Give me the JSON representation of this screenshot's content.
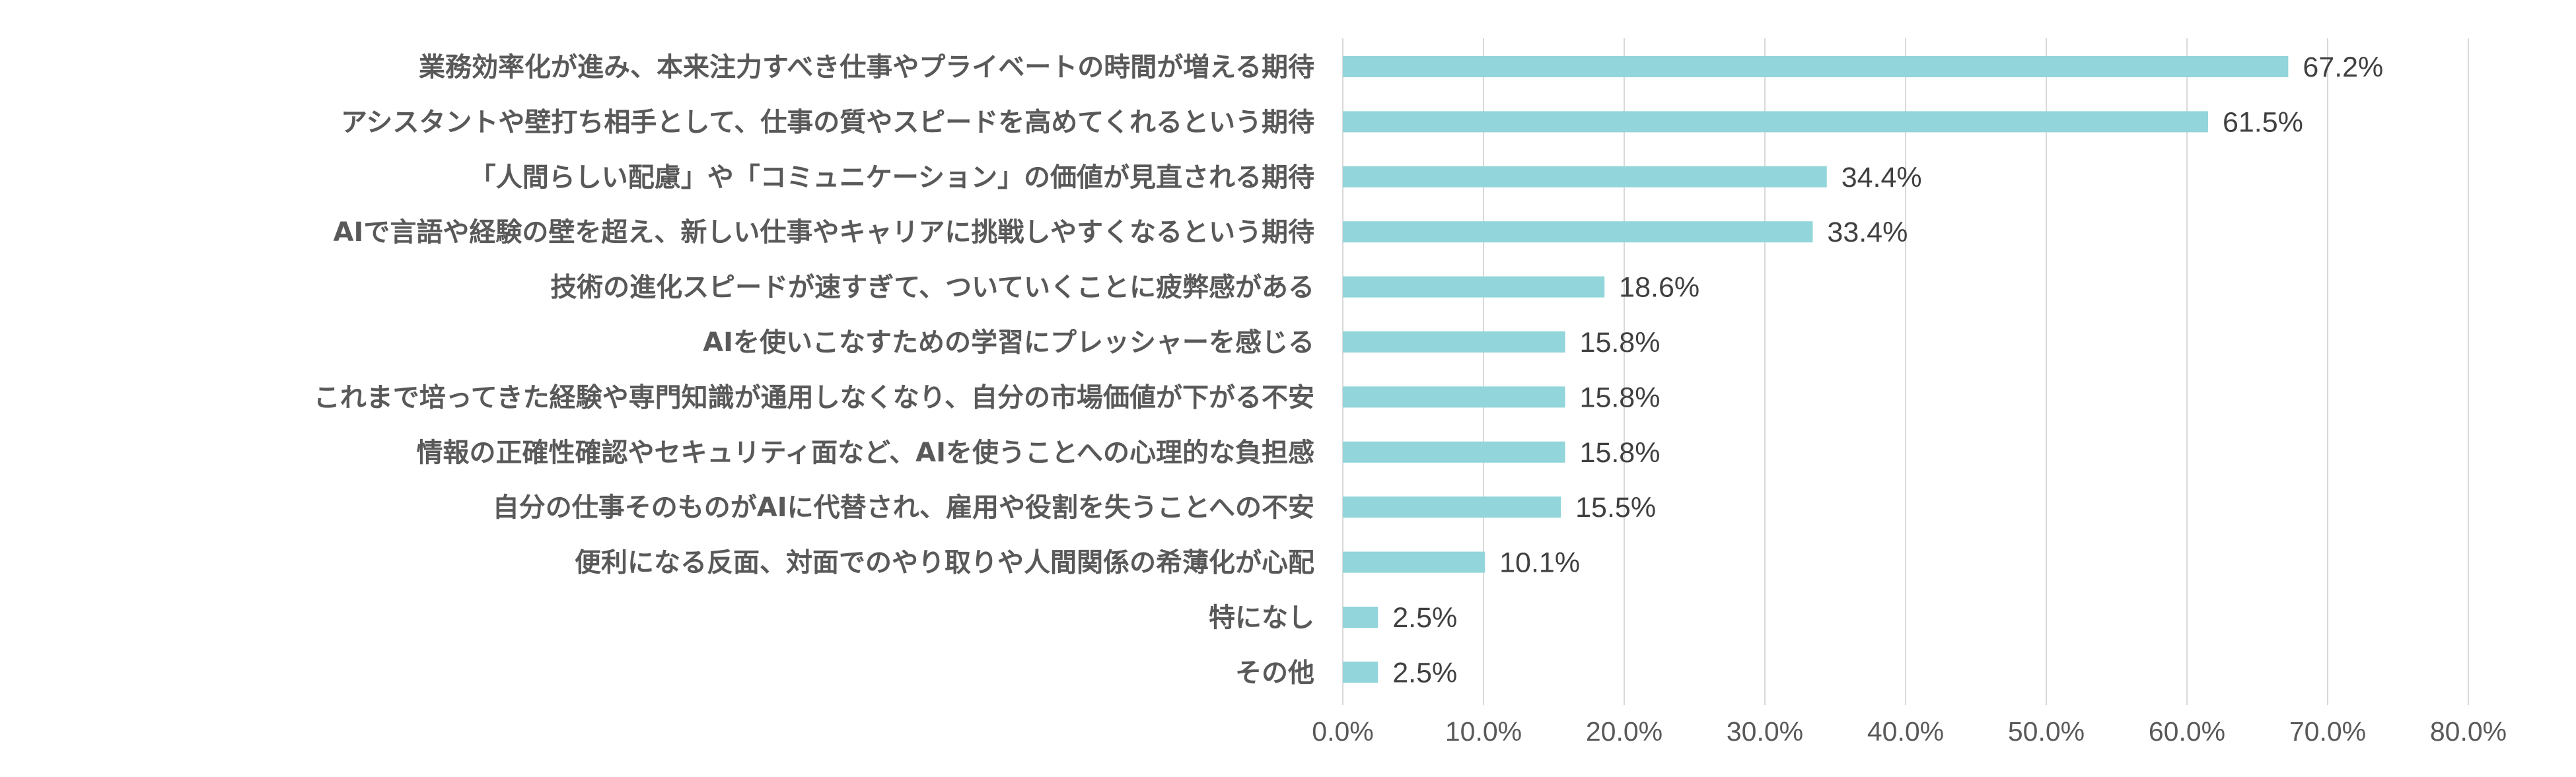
{
  "chart_data": {
    "type": "bar",
    "orientation": "horizontal",
    "title": "",
    "xlabel": "",
    "ylabel": "",
    "xlim": [
      0,
      80
    ],
    "grid": true,
    "legend": "none",
    "bar_color": "#92D5DA",
    "gridline_color": "#D9D9D9",
    "tick_labels": [
      "0.0%",
      "10.0%",
      "20.0%",
      "30.0%",
      "40.0%",
      "50.0%",
      "60.0%",
      "70.0%",
      "80.0%"
    ],
    "tick_values": [
      0,
      10,
      20,
      30,
      40,
      50,
      60,
      70,
      80
    ],
    "categories": [
      "業務効率化が進み、本来注力すべき仕事やプライベートの時間が増える期待",
      "アシスタントや壁打ち相手として、仕事の質やスピードを高めてくれるという期待",
      "「人間らしい配慮」や「コミュニケーション」の価値が見直される期待",
      "AIで言語や経験の壁を超え、新しい仕事やキャリアに挑戦しやすくなるという期待",
      "技術の進化スピードが速すぎて、ついていくことに疲弊感がある",
      "AIを使いこなすための学習にプレッシャーを感じる",
      "これまで培ってきた経験や専門知識が通用しなくなり、自分の市場価値が下がる不安",
      "情報の正確性確認やセキュリティ面など、AIを使うことへの心理的な負担感",
      "自分の仕事そのものがAIに代替され、雇用や役割を失うことへの不安",
      "便利になる反面、対面でのやり取りや人間関係の希薄化が心配",
      "特になし",
      "その他"
    ],
    "values": [
      67.2,
      61.5,
      34.4,
      33.4,
      18.6,
      15.8,
      15.8,
      15.8,
      15.5,
      10.1,
      2.5,
      2.5
    ],
    "value_labels": [
      "67.2%",
      "61.5%",
      "34.4%",
      "33.4%",
      "18.6%",
      "15.8%",
      "15.8%",
      "15.8%",
      "15.5%",
      "10.1%",
      "2.5%",
      "2.5%"
    ]
  }
}
